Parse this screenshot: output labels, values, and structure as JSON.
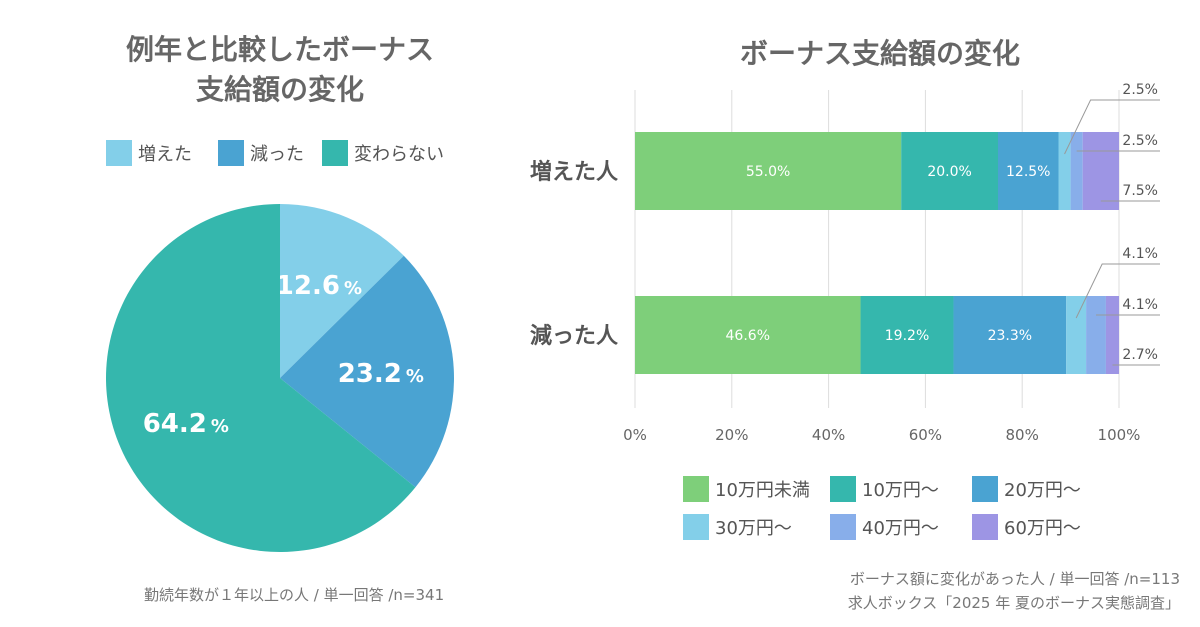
{
  "left": {
    "title_line1": "例年と比較したボーナス",
    "title_line2": "支給額の変化",
    "note": "勤続年数が１年以上の人 / 単一回答 /n=341"
  },
  "right": {
    "title": "ボーナス支給額の変化",
    "note_line1": "ボーナス額に変化があった人 / 単一回答 /n=113",
    "note_line2": "求人ボックス「2025 年 夏のボーナス実態調査」"
  },
  "chart_data": [
    {
      "type": "pie",
      "title": "例年と比較したボーナス支給額の変化",
      "categories": [
        "増えた",
        "減った",
        "変わらない"
      ],
      "values": [
        12.6,
        23.2,
        64.2
      ],
      "labels": [
        "12.6",
        "23.2",
        "64.2"
      ],
      "unit": "%",
      "colors": [
        "#83cfe9",
        "#4aa3d2",
        "#35b7ad"
      ],
      "legend_position": "top"
    },
    {
      "type": "bar",
      "orientation": "horizontal",
      "stacked": true,
      "title": "ボーナス支給額の変化",
      "categories": [
        "増えた人",
        "減った人"
      ],
      "series": [
        {
          "name": "10万円未満",
          "values": [
            55.0,
            46.6
          ],
          "color": "#7ecf7a"
        },
        {
          "name": "10万円〜",
          "values": [
            20.0,
            19.2
          ],
          "color": "#35b7ad"
        },
        {
          "name": "20万円〜",
          "values": [
            12.5,
            23.3
          ],
          "color": "#4aa3d2"
        },
        {
          "name": "30万円〜",
          "values": [
            2.5,
            4.1
          ],
          "color": "#83cfe9"
        },
        {
          "name": "40万円〜",
          "values": [
            2.5,
            4.1
          ],
          "color": "#88aeea"
        },
        {
          "name": "60万円〜",
          "values": [
            7.5,
            2.7
          ],
          "color": "#9d95e4"
        }
      ],
      "data_labels": [
        [
          "55.0%",
          "20.0%",
          "12.5%",
          "2.5%",
          "2.5%",
          "7.5%"
        ],
        [
          "46.6%",
          "19.2%",
          "23.3%",
          "4.1%",
          "4.1%",
          "2.7%"
        ]
      ],
      "xticks": [
        "0%",
        "20%",
        "40%",
        "60%",
        "80%",
        "100%"
      ],
      "xlim": [
        0,
        100
      ],
      "grid": true,
      "legend_position": "bottom"
    }
  ]
}
